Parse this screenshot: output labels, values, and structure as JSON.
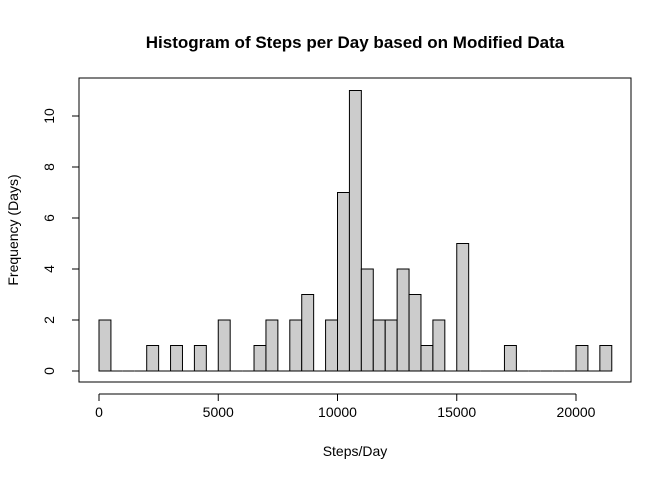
{
  "chart_data": {
    "type": "bar",
    "title": "Histogram of Steps per Day based on Modified Data",
    "xlabel": "Steps/Day",
    "ylabel": "Frequency (Days)",
    "bin_width": 500,
    "bins_start": [
      0,
      500,
      1000,
      1500,
      2000,
      2500,
      3000,
      3500,
      4000,
      4500,
      5000,
      5500,
      6000,
      6500,
      7000,
      7500,
      8000,
      8500,
      9000,
      9500,
      10000,
      10500,
      11000,
      11500,
      12000,
      12500,
      13000,
      13500,
      14000,
      14500,
      15000,
      15500,
      16000,
      16500,
      17000,
      17500,
      18000,
      18500,
      19000,
      19500,
      20000,
      20500,
      21000
    ],
    "values": [
      2,
      0,
      0,
      0,
      1,
      0,
      1,
      0,
      1,
      0,
      2,
      0,
      0,
      1,
      2,
      0,
      2,
      3,
      0,
      2,
      7,
      11,
      4,
      2,
      2,
      4,
      3,
      1,
      2,
      0,
      5,
      0,
      0,
      0,
      1,
      0,
      0,
      0,
      0,
      0,
      1,
      0,
      1
    ],
    "xlim": [
      0,
      21500
    ],
    "ylim": [
      0,
      11
    ],
    "x_ticks": [
      0,
      5000,
      10000,
      15000,
      20000
    ],
    "y_ticks": [
      0,
      2,
      4,
      6,
      8,
      10
    ],
    "bar_fill": "#cccccc",
    "bar_stroke": "#000000",
    "grid": false
  }
}
